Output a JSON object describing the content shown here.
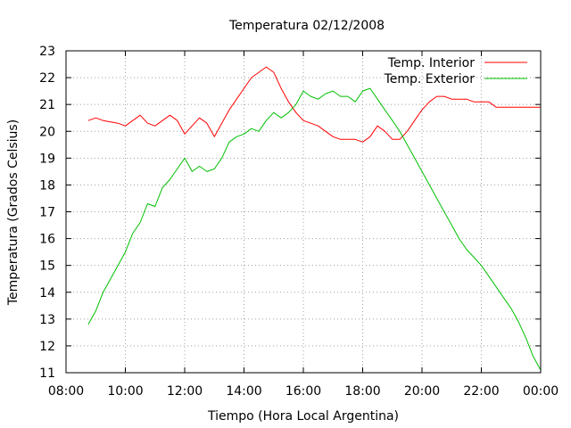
{
  "chart_data": {
    "type": "line",
    "title": "Temperatura 02/12/2008",
    "xlabel": "Tiempo (Hora Local Argentina)",
    "ylabel": "Temperatura (Grados Celsius)",
    "xlim": [
      "08:00",
      "00:00"
    ],
    "ylim": [
      11,
      23
    ],
    "xticks": [
      "08:00",
      "10:00",
      "12:00",
      "14:00",
      "16:00",
      "18:00",
      "20:00",
      "22:00",
      "00:00"
    ],
    "yticks": [
      "11",
      "12",
      "13",
      "14",
      "15",
      "16",
      "17",
      "18",
      "19",
      "20",
      "21",
      "22",
      "23"
    ],
    "grid": true,
    "legend_position": "top-right",
    "series": [
      {
        "name": "Temp. Interior",
        "color": "#ff0000",
        "x": [
          "08:45",
          "09:00",
          "09:15",
          "09:30",
          "09:45",
          "10:00",
          "10:15",
          "10:30",
          "10:45",
          "11:00",
          "11:15",
          "11:30",
          "11:45",
          "12:00",
          "12:15",
          "12:30",
          "12:45",
          "13:00",
          "13:15",
          "13:30",
          "13:45",
          "14:00",
          "14:15",
          "14:30",
          "14:45",
          "15:00",
          "15:15",
          "15:30",
          "15:45",
          "16:00",
          "16:15",
          "16:30",
          "16:45",
          "17:00",
          "17:15",
          "17:30",
          "17:45",
          "18:00",
          "18:15",
          "18:30",
          "18:45",
          "19:00",
          "19:15",
          "19:30",
          "19:45",
          "20:00",
          "20:15",
          "20:30",
          "20:45",
          "21:00",
          "21:15",
          "21:30",
          "21:45",
          "22:00",
          "22:15",
          "22:30",
          "22:45",
          "23:00",
          "23:15",
          "23:30",
          "23:45",
          "00:00"
        ],
        "y": [
          20.4,
          20.5,
          20.4,
          20.35,
          20.3,
          20.2,
          20.4,
          20.6,
          20.3,
          20.2,
          20.4,
          20.6,
          20.4,
          19.9,
          20.2,
          20.5,
          20.3,
          19.8,
          20.3,
          20.8,
          21.2,
          21.6,
          22.0,
          22.2,
          22.4,
          22.2,
          21.6,
          21.1,
          20.7,
          20.4,
          20.3,
          20.2,
          20.0,
          19.8,
          19.7,
          19.7,
          19.7,
          19.6,
          19.8,
          20.2,
          20.0,
          19.7,
          19.7,
          20.0,
          20.4,
          20.8,
          21.1,
          21.3,
          21.3,
          21.2,
          21.2,
          21.2,
          21.1,
          21.1,
          21.1,
          20.9,
          20.9,
          20.9,
          20.9,
          20.9,
          20.9,
          20.9
        ]
      },
      {
        "name": "Temp. Exterior",
        "color": "#00c000",
        "x": [
          "08:45",
          "09:00",
          "09:15",
          "09:30",
          "09:45",
          "10:00",
          "10:15",
          "10:30",
          "10:45",
          "11:00",
          "11:15",
          "11:30",
          "11:45",
          "12:00",
          "12:15",
          "12:30",
          "12:45",
          "13:00",
          "13:15",
          "13:30",
          "13:45",
          "14:00",
          "14:15",
          "14:30",
          "14:45",
          "15:00",
          "15:15",
          "15:30",
          "15:45",
          "16:00",
          "16:15",
          "16:30",
          "16:45",
          "17:00",
          "17:15",
          "17:30",
          "17:45",
          "18:00",
          "18:15",
          "18:30",
          "18:45",
          "19:00",
          "19:15",
          "19:30",
          "19:45",
          "20:00",
          "20:15",
          "20:30",
          "20:45",
          "21:00",
          "21:15",
          "21:30",
          "21:45",
          "22:00",
          "22:15",
          "22:30",
          "22:45",
          "23:00",
          "23:15",
          "23:30",
          "23:45",
          "00:00"
        ],
        "y": [
          12.8,
          13.3,
          14.0,
          14.5,
          15.0,
          15.5,
          16.2,
          16.6,
          17.3,
          17.2,
          17.9,
          18.2,
          18.6,
          19.0,
          18.5,
          18.7,
          18.5,
          18.6,
          19.0,
          19.6,
          19.8,
          19.9,
          20.1,
          20.0,
          20.4,
          20.7,
          20.5,
          20.7,
          21.0,
          21.5,
          21.3,
          21.2,
          21.4,
          21.5,
          21.3,
          21.3,
          21.1,
          21.5,
          21.6,
          21.2,
          20.8,
          20.4,
          20.0,
          19.5,
          19.0,
          18.5,
          18.0,
          17.5,
          17.0,
          16.5,
          16.0,
          15.6,
          15.3,
          15.0,
          14.6,
          14.2,
          13.8,
          13.4,
          12.9,
          12.3,
          11.6,
          11.1
        ]
      }
    ]
  }
}
